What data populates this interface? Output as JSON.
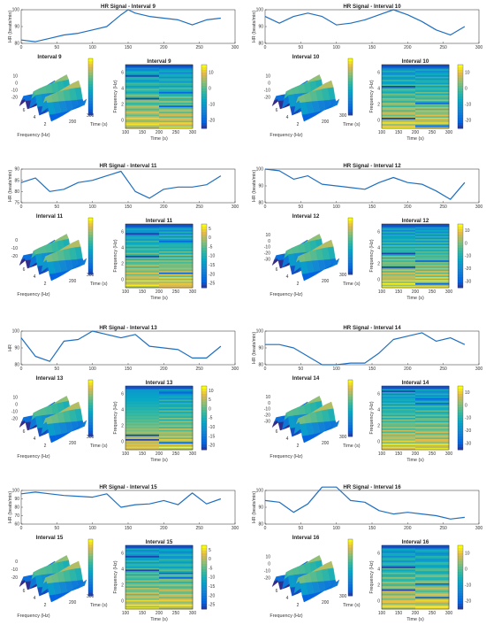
{
  "chart_data": [
    {
      "type": "line",
      "title": "HR Signal - Interval 9",
      "ylabel": "HR (beats/min)",
      "xlim": [
        0,
        300
      ],
      "ylim": [
        80,
        100
      ],
      "xticks": [
        0,
        50,
        100,
        150,
        200,
        250,
        300
      ],
      "yticks": [
        80,
        90,
        100
      ],
      "x": [
        0,
        20,
        40,
        60,
        80,
        100,
        120,
        140,
        150,
        160,
        180,
        200,
        220,
        240,
        260,
        280
      ],
      "values": [
        82,
        81,
        83,
        85,
        86,
        88,
        90,
        97,
        100,
        98,
        96,
        95,
        94,
        91,
        94,
        95
      ]
    },
    {
      "type": "line",
      "title": "HR Signal - Interval 10",
      "ylabel": "HR (beats/min)",
      "xlim": [
        0,
        300
      ],
      "ylim": [
        80,
        100
      ],
      "xticks": [
        0,
        50,
        100,
        150,
        200,
        250,
        300
      ],
      "yticks": [
        80,
        90,
        100
      ],
      "x": [
        0,
        20,
        40,
        60,
        80,
        100,
        120,
        140,
        160,
        180,
        200,
        220,
        240,
        260,
        280
      ],
      "values": [
        96,
        92,
        96,
        98,
        96,
        91,
        92,
        94,
        97,
        100,
        97,
        93,
        88,
        85,
        90
      ]
    },
    {
      "type": "heatmap",
      "title": "Interval 9",
      "view": "3d",
      "xlabel": "Frequency (Hz)",
      "ylabel": "Time (s)",
      "xticks": [
        2,
        4,
        6
      ],
      "yticks": [
        200,
        300
      ],
      "zticks": [
        10,
        0,
        -10,
        -20
      ],
      "zlim": [
        -25,
        12
      ]
    },
    {
      "type": "heatmap",
      "title": "Interval 9",
      "xlabel": "Time (s)",
      "ylabel": "Frequency (Hz)",
      "xticks": [
        100,
        150,
        200,
        250,
        300
      ],
      "yticks": [
        0,
        2,
        4,
        6
      ],
      "colorbar_ticks": [
        10,
        0,
        -10,
        -20
      ]
    },
    {
      "type": "heatmap",
      "title": "Interval 10",
      "view": "3d",
      "xlabel": "Frequency (Hz)",
      "ylabel": "Time (s)",
      "xticks": [
        2,
        4,
        6
      ],
      "yticks": [
        200,
        300
      ],
      "zticks": [
        10,
        0,
        -10,
        -20
      ],
      "zlim": [
        -25,
        12
      ]
    },
    {
      "type": "heatmap",
      "title": "Interval 10",
      "xlabel": "Time (s)",
      "ylabel": "Frequency (Hz)",
      "xticks": [
        100,
        150,
        200,
        250,
        300
      ],
      "yticks": [
        0,
        2,
        4,
        6
      ],
      "colorbar_ticks": [
        10,
        0,
        -10,
        -20
      ]
    },
    {
      "type": "line",
      "title": "HR Signal - Interval 11",
      "ylabel": "HR (beats/min)",
      "xlim": [
        0,
        300
      ],
      "ylim": [
        75,
        90
      ],
      "xticks": [
        0,
        50,
        100,
        150,
        200,
        250,
        300
      ],
      "yticks": [
        75,
        80,
        85,
        90
      ],
      "x": [
        0,
        20,
        40,
        60,
        80,
        100,
        120,
        140,
        160,
        180,
        200,
        220,
        240,
        260,
        280
      ],
      "values": [
        84,
        86,
        80,
        81,
        84,
        85,
        87,
        89,
        80,
        77,
        81,
        82,
        82,
        83,
        87
      ]
    },
    {
      "type": "line",
      "title": "HR Signal - Interval 12",
      "ylabel": "HR (beats/min)",
      "xlim": [
        0,
        300
      ],
      "ylim": [
        80,
        100
      ],
      "xticks": [
        0,
        50,
        100,
        150,
        200,
        250,
        300
      ],
      "yticks": [
        80,
        90,
        100
      ],
      "x": [
        0,
        20,
        40,
        60,
        80,
        100,
        120,
        140,
        160,
        180,
        200,
        220,
        240,
        260,
        280
      ],
      "values": [
        100,
        99,
        94,
        96,
        91,
        90,
        89,
        88,
        92,
        95,
        92,
        91,
        87,
        82,
        92
      ]
    },
    {
      "type": "heatmap",
      "title": "Interval 11",
      "view": "3d",
      "xlabel": "Frequency (Hz)",
      "ylabel": "Time (s)",
      "xticks": [
        2,
        4,
        6
      ],
      "yticks": [
        200,
        300
      ],
      "zticks": [
        0,
        -10,
        -20
      ],
      "zlim": [
        -25,
        8
      ]
    },
    {
      "type": "heatmap",
      "title": "Interval 11",
      "xlabel": "Time (s)",
      "ylabel": "Frequency (Hz)",
      "xticks": [
        100,
        150,
        200,
        250,
        300
      ],
      "yticks": [
        0,
        2,
        4,
        6
      ],
      "colorbar_ticks": [
        5,
        0,
        -5,
        -10,
        -15,
        -20,
        -25
      ]
    },
    {
      "type": "heatmap",
      "title": "Interval 12",
      "view": "3d",
      "xlabel": "Frequency (Hz)",
      "ylabel": "Time (s)",
      "xticks": [
        2,
        4,
        6
      ],
      "yticks": [
        200,
        300
      ],
      "zticks": [
        10,
        0,
        -10,
        -20,
        -30
      ],
      "zlim": [
        -32,
        12
      ]
    },
    {
      "type": "heatmap",
      "title": "Interval 12",
      "xlabel": "Time (s)",
      "ylabel": "Frequency (Hz)",
      "xticks": [
        100,
        150,
        200,
        250,
        300
      ],
      "yticks": [
        0,
        2,
        4,
        6
      ],
      "colorbar_ticks": [
        10,
        0,
        -10,
        -20,
        -30
      ]
    },
    {
      "type": "line",
      "title": "HR Signal - Interval 13",
      "ylabel": "HR",
      "xlim": [
        0,
        300
      ],
      "ylim": [
        80,
        100
      ],
      "xticks": [
        0,
        50,
        100,
        150,
        200,
        250,
        300
      ],
      "yticks": [
        80,
        90,
        100
      ],
      "x": [
        0,
        20,
        40,
        60,
        80,
        100,
        120,
        140,
        160,
        180,
        200,
        220,
        240,
        260,
        280
      ],
      "values": [
        96,
        85,
        82,
        94,
        95,
        100,
        98,
        96,
        98,
        91,
        90,
        89,
        84,
        84,
        91
      ]
    },
    {
      "type": "line",
      "title": "HR Signal - Interval 14",
      "ylabel": "HR (beats/min)",
      "xlim": [
        0,
        300
      ],
      "ylim": [
        80,
        100
      ],
      "xticks": [
        0,
        50,
        100,
        150,
        200,
        250,
        300
      ],
      "yticks": [
        80,
        90,
        100
      ],
      "x": [
        0,
        20,
        40,
        60,
        80,
        100,
        120,
        140,
        160,
        180,
        200,
        220,
        240,
        260,
        280
      ],
      "values": [
        92,
        92,
        90,
        85,
        80,
        80,
        81,
        81,
        87,
        95,
        97,
        99,
        94,
        96,
        92
      ]
    },
    {
      "type": "heatmap",
      "title": "Interval 13",
      "view": "3d",
      "xlabel": "Frequency (Hz)",
      "ylabel": "Time (s)",
      "xticks": [
        2,
        4,
        6
      ],
      "yticks": [
        200,
        300
      ],
      "zticks": [
        10,
        0,
        -10,
        -20
      ],
      "zlim": [
        -25,
        12
      ]
    },
    {
      "type": "heatmap",
      "title": "Interval 13",
      "xlabel": "Time (s)",
      "ylabel": "Frequency (Hz)",
      "xticks": [
        100,
        150,
        200,
        250,
        300
      ],
      "yticks": [
        0,
        2,
        4,
        6
      ],
      "colorbar_ticks": [
        10,
        5,
        0,
        -5,
        -10,
        -15,
        -20
      ]
    },
    {
      "type": "heatmap",
      "title": "Interval 14",
      "view": "3d",
      "xlabel": "Frequency (Hz)",
      "ylabel": "Time (s)",
      "xticks": [
        2,
        4,
        6
      ],
      "yticks": [
        200,
        300
      ],
      "zticks": [
        10,
        0,
        -10,
        -20,
        -30
      ],
      "zlim": [
        -32,
        12
      ]
    },
    {
      "type": "heatmap",
      "title": "Interval 14",
      "xlabel": "Time (s)",
      "ylabel": "Frequency (Hz)",
      "xticks": [
        100,
        150,
        200,
        250,
        300
      ],
      "yticks": [
        0,
        2,
        4,
        6
      ],
      "colorbar_ticks": [
        10,
        0,
        -10,
        -20,
        -30
      ]
    },
    {
      "type": "line",
      "title": "HR Signal - Interval 15",
      "ylabel": "HR (beats/min)",
      "xlim": [
        0,
        300
      ],
      "ylim": [
        60,
        100
      ],
      "xticks": [
        0,
        50,
        100,
        150,
        200,
        250,
        300
      ],
      "yticks": [
        60,
        70,
        80,
        90,
        100
      ],
      "x": [
        0,
        20,
        40,
        60,
        80,
        100,
        120,
        140,
        160,
        180,
        200,
        220,
        240,
        260,
        280
      ],
      "values": [
        96,
        98,
        96,
        94,
        93,
        92,
        96,
        80,
        83,
        84,
        88,
        83,
        97,
        84,
        90
      ]
    },
    {
      "type": "line",
      "title": "HR Signal - Interval 16",
      "ylabel": "HR (beats/min)",
      "xlim": [
        0,
        300
      ],
      "ylim": [
        80,
        100
      ],
      "xticks": [
        0,
        50,
        100,
        150,
        200,
        250,
        300
      ],
      "yticks": [
        80,
        90,
        100
      ],
      "x": [
        0,
        20,
        40,
        60,
        80,
        100,
        120,
        140,
        160,
        180,
        200,
        220,
        240,
        260,
        280
      ],
      "values": [
        94,
        93,
        87,
        92,
        102,
        102,
        94,
        93,
        88,
        86,
        87,
        86,
        85,
        83,
        84
      ]
    },
    {
      "type": "heatmap",
      "title": "Interval 15",
      "view": "3d",
      "xlabel": "Frequency (Hz)",
      "ylabel": "Time (s)",
      "xticks": [
        2,
        4,
        6
      ],
      "yticks": [
        200,
        300
      ],
      "zticks": [
        0,
        -10,
        -20
      ],
      "zlim": [
        -25,
        8
      ]
    },
    {
      "type": "heatmap",
      "title": "Interval 15",
      "xlabel": "Time (s)",
      "ylabel": "Frequency (Hz)",
      "xticks": [
        100,
        150,
        200,
        250,
        300
      ],
      "yticks": [
        0,
        2,
        4,
        6
      ],
      "colorbar_ticks": [
        5,
        0,
        -5,
        -10,
        -15,
        -20,
        -25
      ]
    },
    {
      "type": "heatmap",
      "title": "Interval 16",
      "view": "3d",
      "xlabel": "Frequency (Hz)",
      "ylabel": "Time (s)",
      "xticks": [
        2,
        4,
        6
      ],
      "yticks": [
        200,
        300
      ],
      "zticks": [
        10,
        0,
        -10,
        -20
      ],
      "zlim": [
        -25,
        12
      ]
    },
    {
      "type": "heatmap",
      "title": "Interval 16",
      "xlabel": "Time (s)",
      "ylabel": "Frequency (Hz)",
      "xticks": [
        100,
        150,
        200,
        250,
        300
      ],
      "yticks": [
        0,
        2,
        4,
        6
      ],
      "colorbar_ticks": [
        10,
        0,
        -10,
        -20
      ]
    }
  ]
}
